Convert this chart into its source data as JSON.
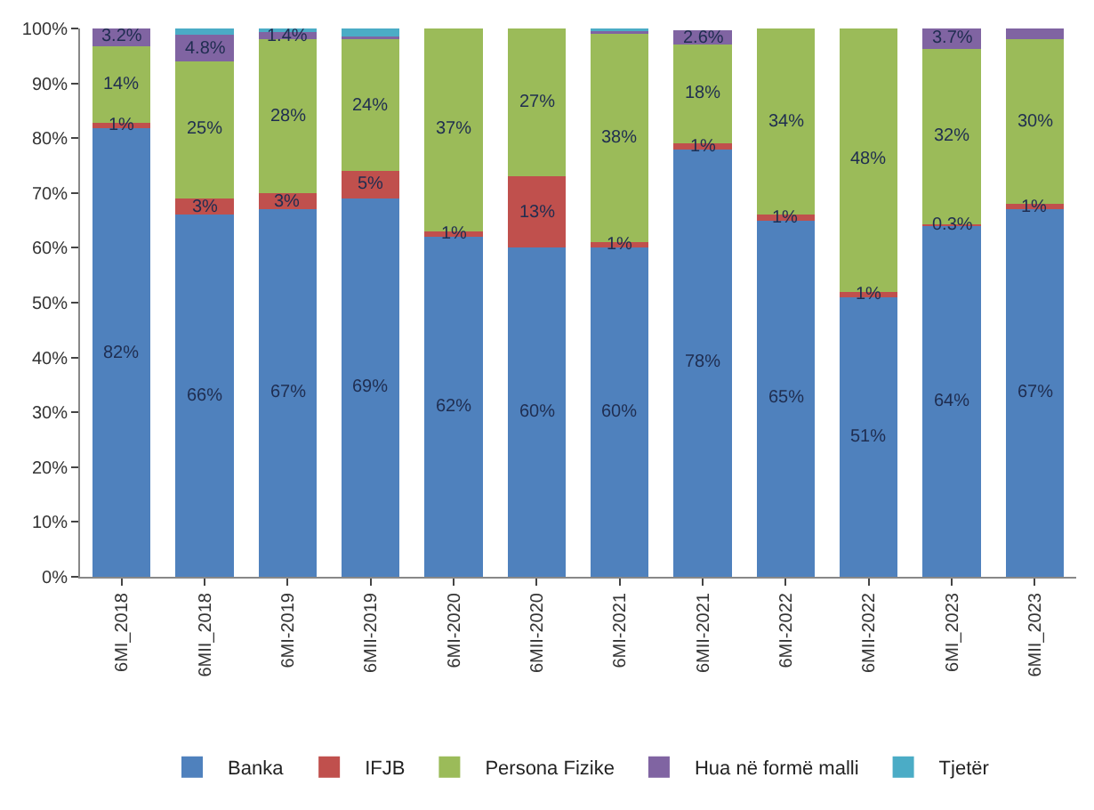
{
  "chart_data": {
    "type": "bar",
    "stacked": true,
    "categories": [
      "6MI_2018",
      "6MII_2018",
      "6MI-2019",
      "6MII-2019",
      "6MI-2020",
      "6MII-2020",
      "6MI-2021",
      "6MII-2021",
      "6MI-2022",
      "6MII-2022",
      "6MI_2023",
      "6MII_2023"
    ],
    "series": [
      {
        "name": "Banka",
        "color": "#4f81bd",
        "values": [
          81.8,
          66,
          67,
          69,
          62,
          60,
          60,
          78,
          65,
          51,
          64,
          67
        ],
        "value_labels": [
          "82%",
          "66%",
          "67%",
          "69%",
          "62%",
          "60%",
          "60%",
          "78%",
          "65%",
          "51%",
          "64%",
          "67%"
        ]
      },
      {
        "name": "IFJB",
        "color": "#c0504d",
        "values": [
          1,
          3,
          3,
          5,
          1,
          13,
          1,
          1,
          1,
          1,
          0.3,
          1
        ],
        "value_labels": [
          "1%",
          "3%",
          "3%",
          "5%",
          "1%",
          "13%",
          "1%",
          "1%",
          "1%",
          "1%",
          "0.3%",
          "1%"
        ]
      },
      {
        "name": "Persona Fizike",
        "color": "#9bbb59",
        "values": [
          14,
          25,
          28,
          24,
          37,
          27,
          38,
          18,
          34,
          48,
          32,
          30
        ],
        "value_labels": [
          "14%",
          "25%",
          "28%",
          "24%",
          "37%",
          "27%",
          "38%",
          "18%",
          "34%",
          "48%",
          "32%",
          "30%"
        ]
      },
      {
        "name": "Hua në formë malli",
        "color": "#8064a2",
        "values": [
          3.2,
          4.8,
          1.4,
          0.5,
          null,
          null,
          0.5,
          2.6,
          null,
          null,
          3.7,
          2
        ],
        "value_labels": [
          "3.2%",
          "4.8%",
          "1.4%",
          null,
          null,
          null,
          null,
          "2.6%",
          null,
          null,
          "3.7%",
          null
        ]
      },
      {
        "name": "Tjetër",
        "color": "#4bacc6",
        "values": [
          null,
          1.2,
          0.6,
          1.5,
          null,
          null,
          0.5,
          null,
          null,
          null,
          null,
          null
        ],
        "value_labels": [
          null,
          null,
          null,
          null,
          null,
          null,
          null,
          null,
          null,
          null,
          null,
          null
        ]
      }
    ],
    "ylim": [
      0,
      100
    ],
    "yticks": [
      {
        "value": 0,
        "label": "0%"
      },
      {
        "value": 10,
        "label": "10%"
      },
      {
        "value": 20,
        "label": "20%"
      },
      {
        "value": 30,
        "label": "30%"
      },
      {
        "value": 40,
        "label": "40%"
      },
      {
        "value": 50,
        "label": "50%"
      },
      {
        "value": 60,
        "label": "60%"
      },
      {
        "value": 70,
        "label": "70%"
      },
      {
        "value": 80,
        "label": "80%"
      },
      {
        "value": 90,
        "label": "90%"
      },
      {
        "value": 100,
        "label": "100%"
      }
    ],
    "grid": false,
    "legend": "bottom"
  }
}
